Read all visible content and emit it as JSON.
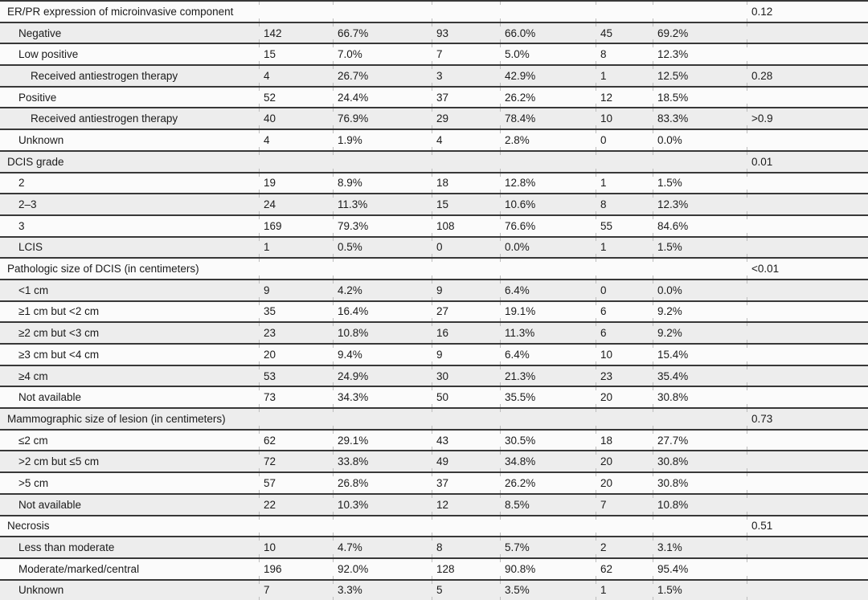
{
  "table": {
    "description_visible_header": "",
    "p_column_note": "rightmost column shows p-values",
    "colors": {
      "shaded_row": "#ededed",
      "plain_row": "#fbfbfb",
      "rule": "#383838",
      "text": "#1b1b1b"
    },
    "rows": [
      {
        "label": "ER/PR expression of microinvasive component",
        "indent": 0,
        "shaded": false,
        "p": "0.12",
        "p_bold": false
      },
      {
        "label": "Negative",
        "indent": 1,
        "shaded": true,
        "n1": "142",
        "pct1": "66.7%",
        "n2": "93",
        "pct2": "66.0%",
        "n3": "45",
        "pct3": "69.2%"
      },
      {
        "label": "Low positive",
        "indent": 1,
        "shaded": false,
        "n1": "15",
        "pct1": "7.0%",
        "n2": "7",
        "pct2": "5.0%",
        "n3": "8",
        "pct3": "12.3%"
      },
      {
        "label": "Received antiestrogen therapy",
        "indent": 2,
        "shaded": true,
        "n1": "4",
        "pct1": "26.7%",
        "n2": "3",
        "pct2": "42.9%",
        "n3": "1",
        "pct3": "12.5%",
        "p": "0.28",
        "p_bold": false
      },
      {
        "label": "Positive",
        "indent": 1,
        "shaded": false,
        "n1": "52",
        "pct1": "24.4%",
        "n2": "37",
        "pct2": "26.2%",
        "n3": "12",
        "pct3": "18.5%"
      },
      {
        "label": "Received antiestrogen therapy",
        "indent": 2,
        "shaded": true,
        "n1": "40",
        "pct1": "76.9%",
        "n2": "29",
        "pct2": "78.4%",
        "n3": "10",
        "pct3": "83.3%",
        "p": ">0.9",
        "p_bold": false
      },
      {
        "label": "Unknown",
        "indent": 1,
        "shaded": false,
        "n1": "4",
        "pct1": "1.9%",
        "n2": "4",
        "pct2": "2.8%",
        "n3": "0",
        "pct3": "0.0%"
      },
      {
        "label": "DCIS grade",
        "indent": 0,
        "shaded": true,
        "p": "0.01",
        "p_bold": true
      },
      {
        "label": "2",
        "indent": 1,
        "shaded": false,
        "n1": "19",
        "pct1": "8.9%",
        "n2": "18",
        "pct2": "12.8%",
        "n3": "1",
        "pct3": "1.5%"
      },
      {
        "label": "2–3",
        "indent": 1,
        "shaded": true,
        "n1": "24",
        "pct1": "11.3%",
        "n2": "15",
        "pct2": "10.6%",
        "n3": "8",
        "pct3": "12.3%"
      },
      {
        "label": "3",
        "indent": 1,
        "shaded": false,
        "n1": "169",
        "pct1": "79.3%",
        "n2": "108",
        "pct2": "76.6%",
        "n3": "55",
        "pct3": "84.6%"
      },
      {
        "label": "LCIS",
        "indent": 1,
        "shaded": true,
        "n1": "1",
        "pct1": "0.5%",
        "n2": "0",
        "pct2": "0.0%",
        "n3": "1",
        "pct3": "1.5%"
      },
      {
        "label": "Pathologic size of DCIS (in centimeters)",
        "indent": 0,
        "shaded": false,
        "p": "<0.01",
        "p_bold": true
      },
      {
        "label": "<1 cm",
        "indent": 1,
        "shaded": true,
        "n1": "9",
        "pct1": "4.2%",
        "n2": "9",
        "pct2": "6.4%",
        "n3": "0",
        "pct3": "0.0%"
      },
      {
        "label": "≥1 cm but <2 cm",
        "indent": 1,
        "shaded": false,
        "n1": "35",
        "pct1": "16.4%",
        "n2": "27",
        "pct2": "19.1%",
        "n3": "6",
        "pct3": "9.2%"
      },
      {
        "label": "≥2 cm but <3 cm",
        "indent": 1,
        "shaded": true,
        "n1": "23",
        "pct1": "10.8%",
        "n2": "16",
        "pct2": "11.3%",
        "n3": "6",
        "pct3": "9.2%"
      },
      {
        "label": "≥3 cm but <4 cm",
        "indent": 1,
        "shaded": false,
        "n1": "20",
        "pct1": "9.4%",
        "n2": "9",
        "pct2": "6.4%",
        "n3": "10",
        "pct3": "15.4%"
      },
      {
        "label": "≥4 cm",
        "indent": 1,
        "shaded": true,
        "n1": "53",
        "pct1": "24.9%",
        "n2": "30",
        "pct2": "21.3%",
        "n3": "23",
        "pct3": "35.4%"
      },
      {
        "label": "Not available",
        "indent": 1,
        "shaded": false,
        "n1": "73",
        "pct1": "34.3%",
        "n2": "50",
        "pct2": "35.5%",
        "n3": "20",
        "pct3": "30.8%"
      },
      {
        "label": "Mammographic size of lesion (in centimeters)",
        "indent": 0,
        "shaded": true,
        "p": "0.73",
        "p_bold": false
      },
      {
        "label": "≤2 cm",
        "indent": 1,
        "shaded": false,
        "n1": "62",
        "pct1": "29.1%",
        "n2": "43",
        "pct2": "30.5%",
        "n3": "18",
        "pct3": "27.7%"
      },
      {
        "label": ">2 cm but ≤5 cm",
        "indent": 1,
        "shaded": true,
        "n1": "72",
        "pct1": "33.8%",
        "n2": "49",
        "pct2": "34.8%",
        "n3": "20",
        "pct3": "30.8%"
      },
      {
        "label": ">5 cm",
        "indent": 1,
        "shaded": false,
        "n1": "57",
        "pct1": "26.8%",
        "n2": "37",
        "pct2": "26.2%",
        "n3": "20",
        "pct3": "30.8%"
      },
      {
        "label": "Not available",
        "indent": 1,
        "shaded": true,
        "n1": "22",
        "pct1": "10.3%",
        "n2": "12",
        "pct2": "8.5%",
        "n3": "7",
        "pct3": "10.8%"
      },
      {
        "label": "Necrosis",
        "indent": 0,
        "shaded": false,
        "p": "0.51",
        "p_bold": false
      },
      {
        "label": "Less than moderate",
        "indent": 1,
        "shaded": true,
        "n1": "10",
        "pct1": "4.7%",
        "n2": "8",
        "pct2": "5.7%",
        "n3": "2",
        "pct3": "3.1%"
      },
      {
        "label": "Moderate/marked/central",
        "indent": 1,
        "shaded": false,
        "n1": "196",
        "pct1": "92.0%",
        "n2": "128",
        "pct2": "90.8%",
        "n3": "62",
        "pct3": "95.4%"
      },
      {
        "label": "Unknown",
        "indent": 1,
        "shaded": true,
        "n1": "7",
        "pct1": "3.3%",
        "n2": "5",
        "pct2": "3.5%",
        "n3": "1",
        "pct3": "1.5%"
      }
    ]
  }
}
